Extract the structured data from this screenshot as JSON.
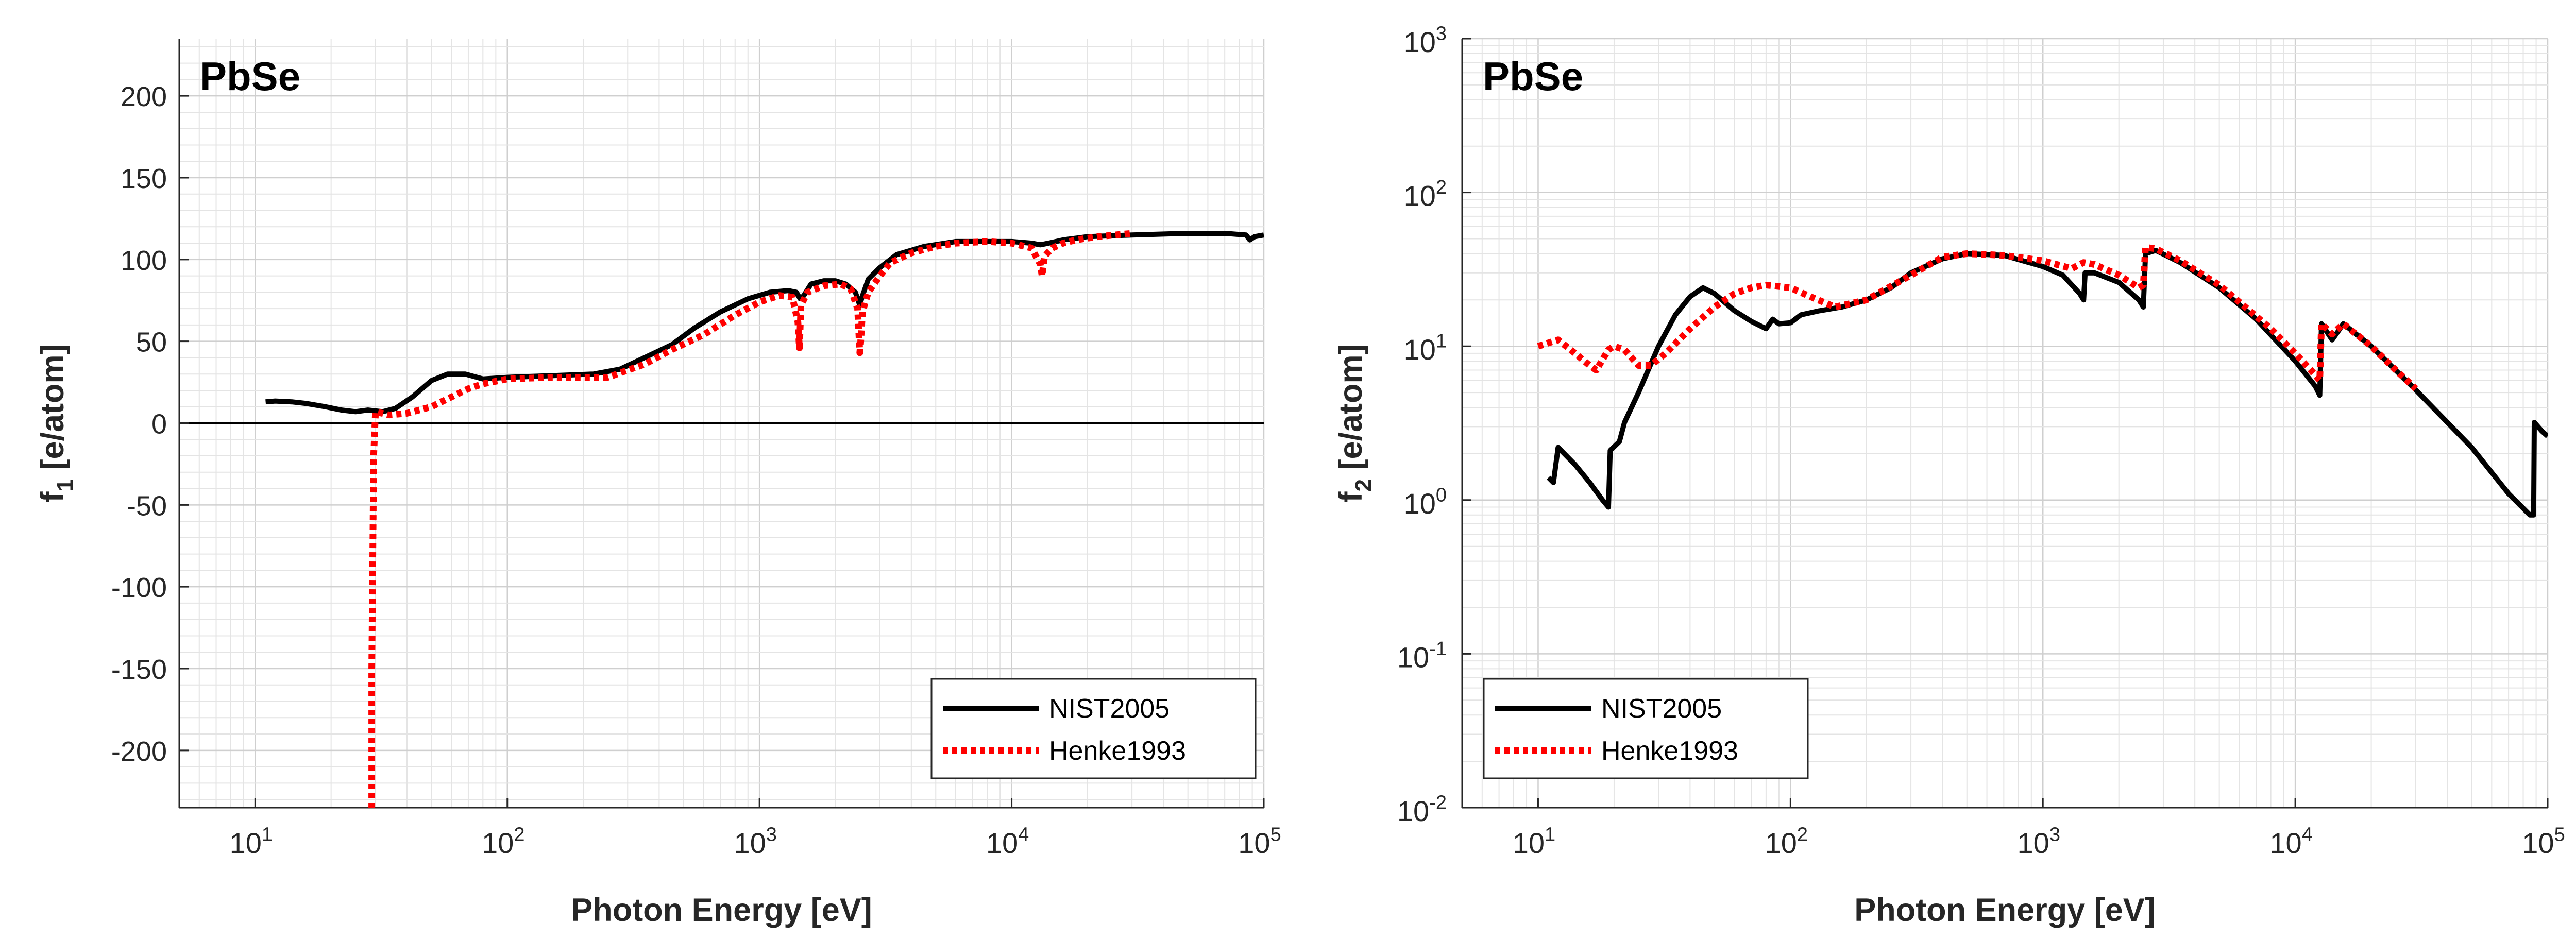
{
  "chart_data": [
    {
      "type": "line",
      "title": "PbSe",
      "xlabel": "Photon Energy [eV]",
      "ylabel": "f",
      "ylabel_sub": "1",
      "ylabel_unit": "[e/atom]",
      "xscale": "log",
      "yscale": "linear",
      "xlim": [
        5,
        100000
      ],
      "ylim": [
        -235,
        235
      ],
      "x_ticks": [
        10,
        100,
        1000,
        10000,
        100000
      ],
      "x_tick_labels": [
        {
          "base": "10",
          "exp": "1"
        },
        {
          "base": "10",
          "exp": "2"
        },
        {
          "base": "10",
          "exp": "3"
        },
        {
          "base": "10",
          "exp": "4"
        },
        {
          "base": "10",
          "exp": "5"
        }
      ],
      "y_ticks": [
        200,
        150,
        100,
        50,
        0,
        -50,
        -100,
        -150,
        -200
      ],
      "y_tick_labels": [
        "200",
        "150",
        "100",
        "50",
        "0",
        "-50",
        "-100",
        "-150",
        "-200"
      ],
      "grid": true,
      "zero_line": true,
      "legend_position": "bottom-right",
      "series": [
        {
          "name": "NIST2005",
          "color": "#000000",
          "style": "solid",
          "points": [
            [
              11,
              13
            ],
            [
              12,
              13.5
            ],
            [
              14,
              13
            ],
            [
              16,
              12
            ],
            [
              19,
              10
            ],
            [
              22,
              8
            ],
            [
              25,
              7
            ],
            [
              28,
              8
            ],
            [
              32,
              7
            ],
            [
              36,
              9
            ],
            [
              42,
              16
            ],
            [
              50,
              26
            ],
            [
              58,
              30
            ],
            [
              68,
              30
            ],
            [
              80,
              27
            ],
            [
              100,
              28
            ],
            [
              150,
              29
            ],
            [
              220,
              30
            ],
            [
              280,
              33
            ],
            [
              350,
              40
            ],
            [
              450,
              48
            ],
            [
              550,
              58
            ],
            [
              700,
              68
            ],
            [
              900,
              76
            ],
            [
              1100,
              80
            ],
            [
              1300,
              81
            ],
            [
              1400,
              80
            ],
            [
              1450,
              76
            ],
            [
              1500,
              78
            ],
            [
              1600,
              85
            ],
            [
              1800,
              87
            ],
            [
              2000,
              87
            ],
            [
              2200,
              85
            ],
            [
              2400,
              80
            ],
            [
              2500,
              72
            ],
            [
              2550,
              77
            ],
            [
              2700,
              88
            ],
            [
              3000,
              95
            ],
            [
              3500,
              103
            ],
            [
              4500,
              108
            ],
            [
              6000,
              111
            ],
            [
              8000,
              111
            ],
            [
              10000,
              111
            ],
            [
              12000,
              110
            ],
            [
              13000,
              109
            ],
            [
              14000,
              110
            ],
            [
              16000,
              112
            ],
            [
              20000,
              114
            ],
            [
              30000,
              115
            ],
            [
              50000,
              116
            ],
            [
              70000,
              116
            ],
            [
              85000,
              115
            ],
            [
              88000,
              112
            ],
            [
              92000,
              114
            ],
            [
              100000,
              115
            ]
          ]
        },
        {
          "name": "Henke1993",
          "color": "#ff0000",
          "style": "dotted",
          "points": [
            [
              29,
              -235
            ],
            [
              29,
              -150
            ],
            [
              29.5,
              -20
            ],
            [
              30,
              7
            ],
            [
              34,
              5
            ],
            [
              40,
              6
            ],
            [
              50,
              10
            ],
            [
              60,
              16
            ],
            [
              70,
              21
            ],
            [
              80,
              24
            ],
            [
              100,
              27
            ],
            [
              150,
              28
            ],
            [
              250,
              28
            ],
            [
              350,
              36
            ],
            [
              450,
              45
            ],
            [
              600,
              54
            ],
            [
              800,
              66
            ],
            [
              1000,
              74
            ],
            [
              1200,
              78
            ],
            [
              1350,
              77
            ],
            [
              1420,
              62
            ],
            [
              1440,
              46
            ],
            [
              1460,
              72
            ],
            [
              1550,
              80
            ],
            [
              1800,
              84
            ],
            [
              2100,
              85
            ],
            [
              2300,
              82
            ],
            [
              2450,
              70
            ],
            [
              2500,
              43
            ],
            [
              2520,
              50
            ],
            [
              2560,
              68
            ],
            [
              2700,
              80
            ],
            [
              3000,
              90
            ],
            [
              3300,
              98
            ],
            [
              4000,
              104
            ],
            [
              5000,
              108
            ],
            [
              6000,
              110
            ],
            [
              8000,
              111
            ],
            [
              10000,
              110
            ],
            [
              12000,
              107
            ],
            [
              13000,
              97
            ],
            [
              13200,
              90
            ],
            [
              13500,
              102
            ],
            [
              14500,
              107
            ],
            [
              16000,
              110
            ],
            [
              18000,
              112
            ],
            [
              22000,
              114
            ],
            [
              30000,
              116
            ]
          ]
        }
      ]
    },
    {
      "type": "line",
      "title": "PbSe",
      "xlabel": "Photon Energy [eV]",
      "ylabel": "f",
      "ylabel_sub": "2",
      "ylabel_unit": "[e/atom]",
      "xscale": "log",
      "yscale": "log",
      "xlim": [
        5,
        100000
      ],
      "ylim": [
        0.01,
        1000
      ],
      "x_ticks": [
        10,
        100,
        1000,
        10000,
        100000
      ],
      "x_tick_labels": [
        {
          "base": "10",
          "exp": "1"
        },
        {
          "base": "10",
          "exp": "2"
        },
        {
          "base": "10",
          "exp": "3"
        },
        {
          "base": "10",
          "exp": "4"
        },
        {
          "base": "10",
          "exp": "5"
        }
      ],
      "y_ticks": [
        1000,
        100,
        10,
        1,
        0.1,
        0.01
      ],
      "y_tick_labels": [
        {
          "base": "10",
          "exp": "3"
        },
        {
          "base": "10",
          "exp": "2"
        },
        {
          "base": "10",
          "exp": "1"
        },
        {
          "base": "10",
          "exp": "0"
        },
        {
          "base": "10",
          "exp": "-1"
        },
        {
          "base": "10",
          "exp": "-2"
        }
      ],
      "grid": true,
      "zero_line": false,
      "legend_position": "bottom-left",
      "series": [
        {
          "name": "NIST2005",
          "color": "#000000",
          "style": "solid",
          "points": [
            [
              11,
              1.4
            ],
            [
              11.5,
              1.3
            ],
            [
              12,
              2.2
            ],
            [
              14,
              1.7
            ],
            [
              16,
              1.3
            ],
            [
              18,
              1.0
            ],
            [
              19,
              0.9
            ],
            [
              19.3,
              2.1
            ],
            [
              21,
              2.4
            ],
            [
              22,
              3.2
            ],
            [
              25,
              5
            ],
            [
              30,
              10
            ],
            [
              35,
              16
            ],
            [
              40,
              21
            ],
            [
              45,
              24
            ],
            [
              50,
              22
            ],
            [
              60,
              17
            ],
            [
              70,
              14.5
            ],
            [
              80,
              13
            ],
            [
              85,
              15
            ],
            [
              90,
              14
            ],
            [
              100,
              14.2
            ],
            [
              110,
              16
            ],
            [
              130,
              17
            ],
            [
              160,
              18
            ],
            [
              200,
              20
            ],
            [
              250,
              24
            ],
            [
              300,
              30
            ],
            [
              400,
              37
            ],
            [
              500,
              40
            ],
            [
              700,
              39
            ],
            [
              1000,
              33
            ],
            [
              1200,
              29
            ],
            [
              1400,
              22
            ],
            [
              1450,
              20
            ],
            [
              1470,
              30
            ],
            [
              1600,
              30
            ],
            [
              2000,
              26
            ],
            [
              2400,
              20
            ],
            [
              2500,
              18
            ],
            [
              2550,
              40
            ],
            [
              2800,
              42
            ],
            [
              3500,
              35
            ],
            [
              5000,
              24
            ],
            [
              7000,
              15
            ],
            [
              10000,
              8
            ],
            [
              12000,
              5.5
            ],
            [
              12500,
              4.8
            ],
            [
              12700,
              14
            ],
            [
              14000,
              11
            ],
            [
              15500,
              14
            ],
            [
              20000,
              10
            ],
            [
              30000,
              5.2
            ],
            [
              50000,
              2.2
            ],
            [
              70000,
              1.1
            ],
            [
              85000,
              0.8
            ],
            [
              88000,
              0.8
            ],
            [
              88500,
              3.2
            ],
            [
              95000,
              2.8
            ],
            [
              100000,
              2.6
            ]
          ]
        },
        {
          "name": "Henke1993",
          "color": "#ff0000",
          "style": "dotted",
          "points": [
            [
              10,
              10
            ],
            [
              12,
              11
            ],
            [
              14,
              9
            ],
            [
              16,
              7.5
            ],
            [
              17,
              7
            ],
            [
              19,
              9.5
            ],
            [
              20,
              10
            ],
            [
              22,
              9.5
            ],
            [
              25,
              7.5
            ],
            [
              28,
              7.5
            ],
            [
              32,
              9
            ],
            [
              40,
              13
            ],
            [
              50,
              18
            ],
            [
              60,
              22
            ],
            [
              70,
              24
            ],
            [
              80,
              25
            ],
            [
              100,
              24
            ],
            [
              120,
              21
            ],
            [
              150,
              18
            ],
            [
              200,
              20
            ],
            [
              300,
              29
            ],
            [
              400,
              38
            ],
            [
              500,
              40
            ],
            [
              700,
              39
            ],
            [
              1000,
              36
            ],
            [
              1300,
              32
            ],
            [
              1450,
              35
            ],
            [
              1600,
              34
            ],
            [
              2000,
              29
            ],
            [
              2400,
              24
            ],
            [
              2500,
              25
            ],
            [
              2550,
              44
            ],
            [
              2800,
              43
            ],
            [
              3500,
              36
            ],
            [
              5000,
              25
            ],
            [
              8000,
              13
            ],
            [
              10000,
              9
            ],
            [
              12000,
              6.5
            ],
            [
              12500,
              6
            ],
            [
              12700,
              14
            ],
            [
              14000,
              12
            ],
            [
              15500,
              14
            ],
            [
              20000,
              10
            ],
            [
              25000,
              7
            ],
            [
              30000,
              5.3
            ]
          ]
        }
      ]
    }
  ]
}
